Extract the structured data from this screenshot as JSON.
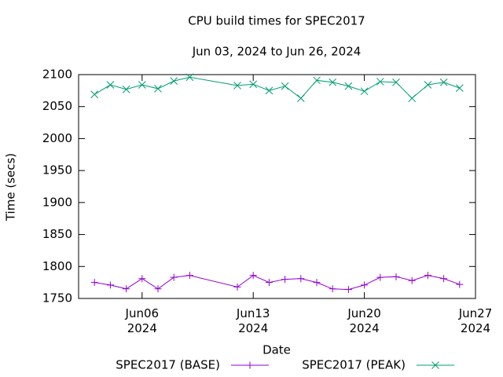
{
  "chart_data": {
    "type": "line",
    "title": "CPU build times for SPEC2017",
    "subtitle": "Jun 03, 2024 to Jun 26, 2024",
    "x_label": "Date",
    "y_label": "Time (secs)",
    "x": [
      "2024-06-03",
      "2024-06-04",
      "2024-06-05",
      "2024-06-06",
      "2024-06-07",
      "2024-06-08",
      "2024-06-09",
      "2024-06-12",
      "2024-06-13",
      "2024-06-14",
      "2024-06-15",
      "2024-06-16",
      "2024-06-17",
      "2024-06-18",
      "2024-06-19",
      "2024-06-20",
      "2024-06-21",
      "2024-06-22",
      "2024-06-23",
      "2024-06-24",
      "2024-06-25",
      "2024-06-26"
    ],
    "xlim": [
      "2024-06-02",
      "2024-06-27"
    ],
    "xticks": [
      {
        "value": "2024-06-06",
        "label": "Jun06\n2024"
      },
      {
        "value": "2024-06-13",
        "label": "Jun13\n2024"
      },
      {
        "value": "2024-06-20",
        "label": "Jun20\n2024"
      },
      {
        "value": "2024-06-27",
        "label": "Jun27\n2024"
      }
    ],
    "ylim": [
      1750,
      2100
    ],
    "yticks": [
      1750,
      1800,
      1850,
      1900,
      1950,
      2000,
      2050,
      2100
    ],
    "grid": false,
    "legend": "bottom",
    "series": [
      {
        "name": "SPEC2017 (BASE)",
        "color": "#9400d3",
        "marker": "plus",
        "values": [
          1775,
          1771,
          1765,
          1781,
          1765,
          1783,
          1786,
          1768,
          1786,
          1775,
          1780,
          1781,
          1775,
          1765,
          1764,
          1771,
          1783,
          1784,
          1778,
          1786,
          1781,
          1772
        ]
      },
      {
        "name": "SPEC2017 (PEAK)",
        "color": "#009e73",
        "marker": "cross",
        "values": [
          2069,
          2084,
          2077,
          2084,
          2078,
          2090,
          2096,
          2083,
          2085,
          2075,
          2082,
          2063,
          2091,
          2088,
          2082,
          2074,
          2089,
          2088,
          2063,
          2084,
          2088,
          2079
        ]
      }
    ]
  }
}
